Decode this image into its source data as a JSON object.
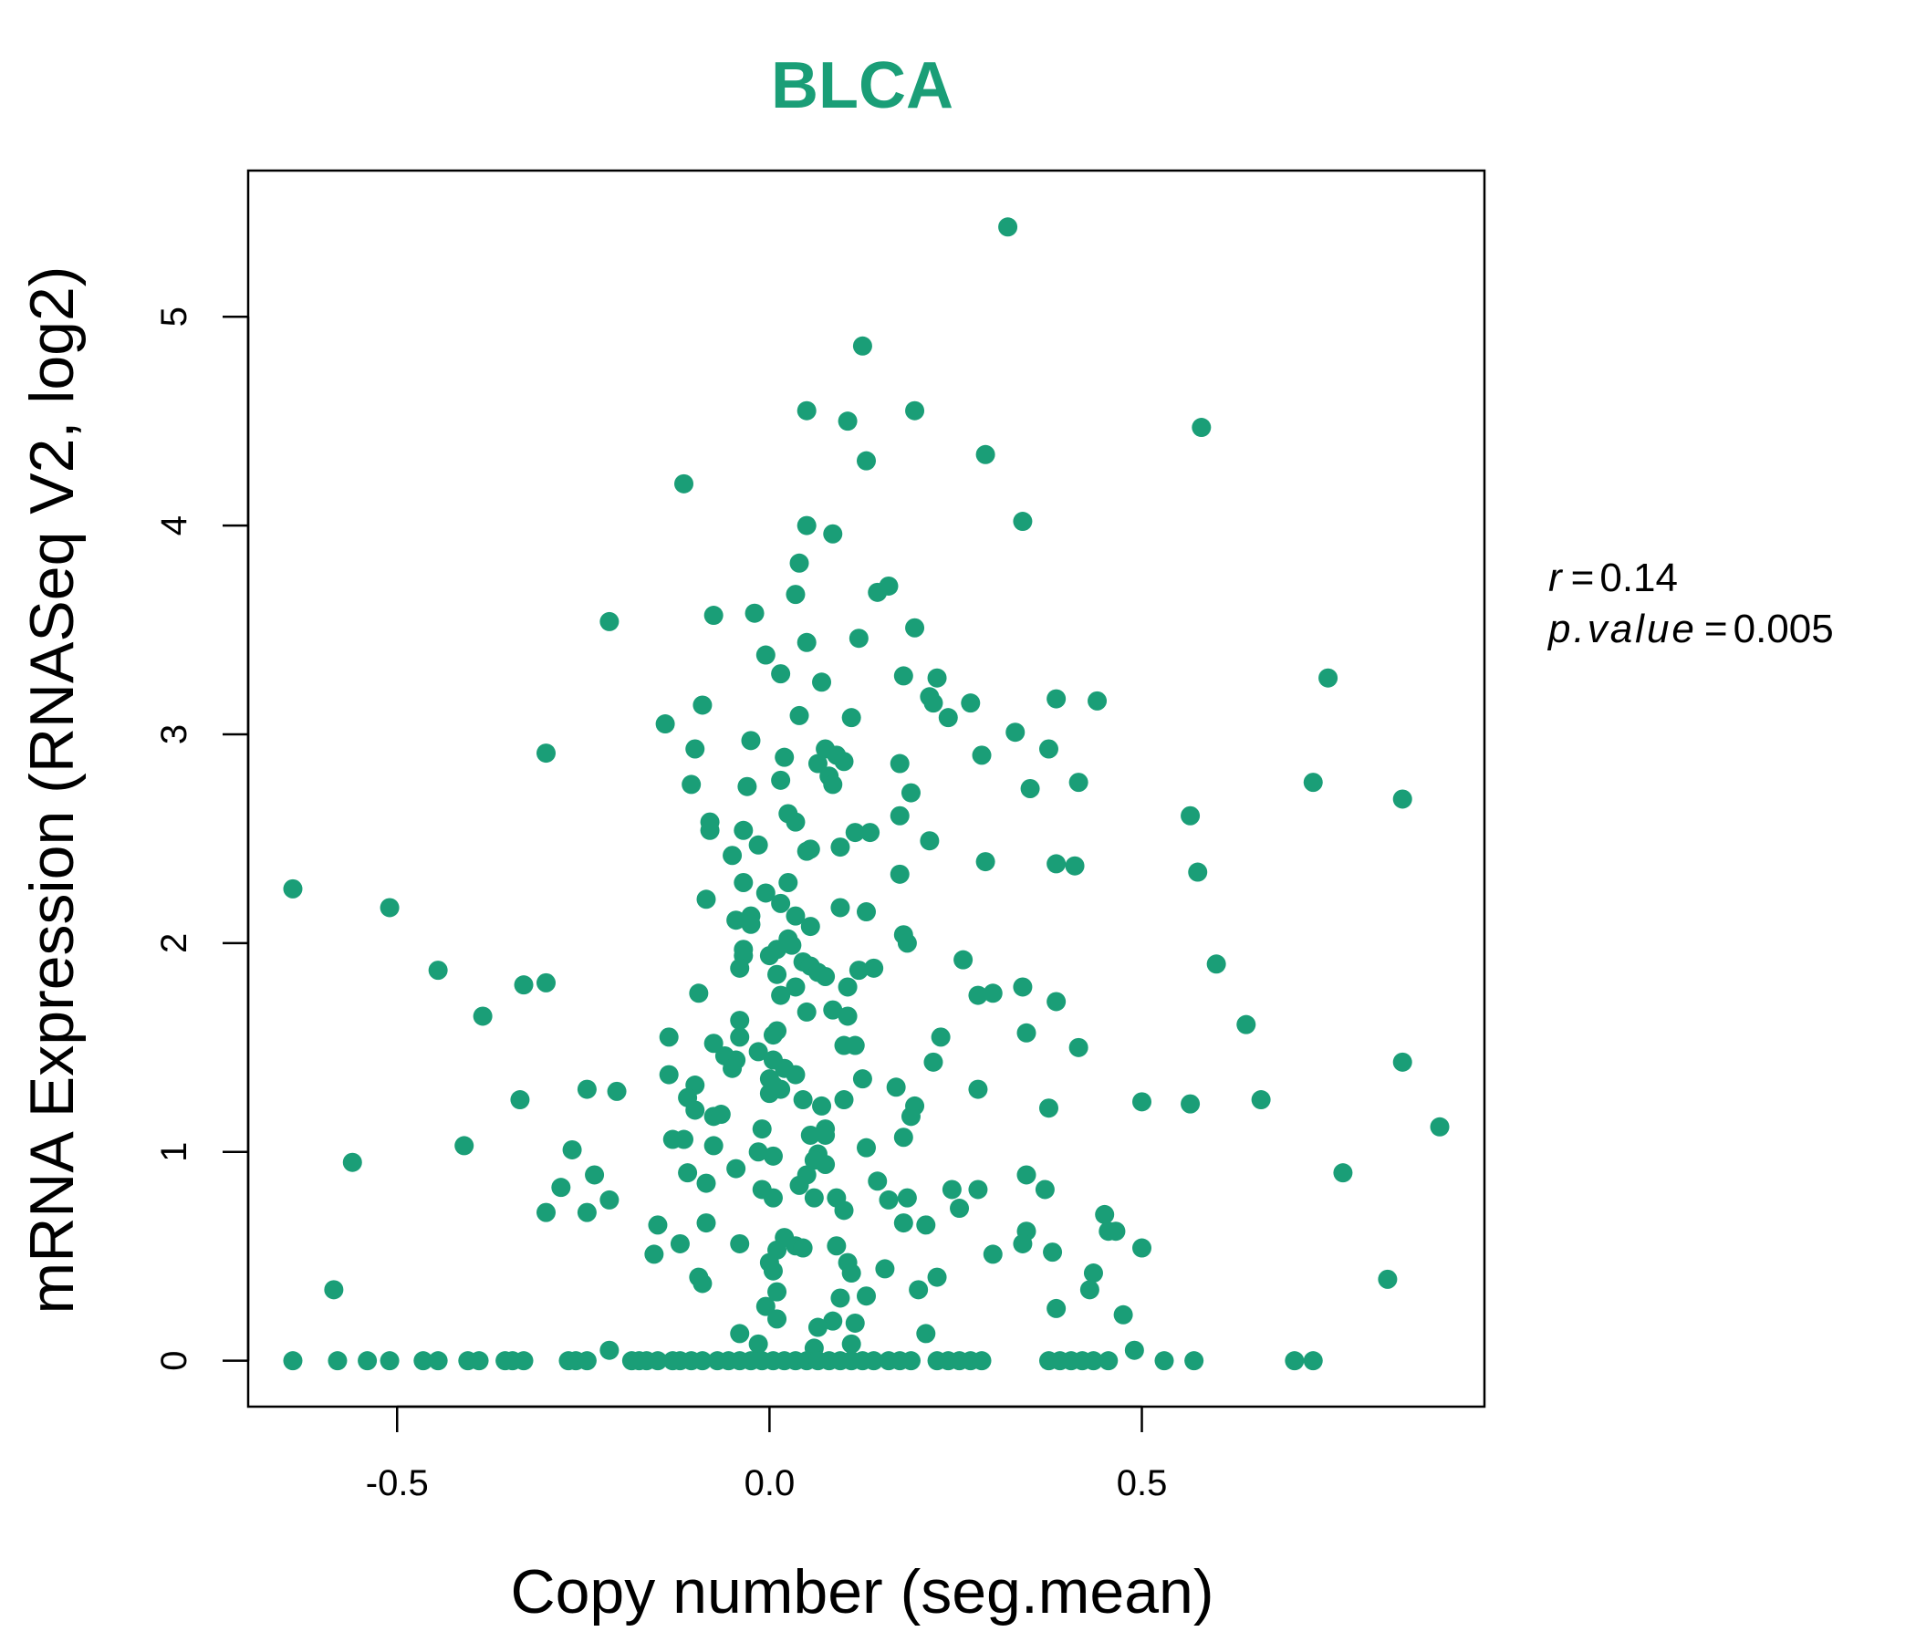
{
  "chart_data": {
    "type": "scatter",
    "title": "BLCA",
    "xlabel": "Copy number (seg.mean)",
    "ylabel": "mRNA Expression (RNASeq V2, log2)",
    "xlim": [
      -0.7,
      0.96
    ],
    "ylim": [
      -0.22,
      5.7
    ],
    "xticks": [
      -0.5,
      0.0,
      0.5
    ],
    "xtick_labels": [
      "-0.5",
      "0.0",
      "0.5"
    ],
    "yticks": [
      0,
      1,
      2,
      3,
      4,
      5
    ],
    "ytick_labels": [
      "0",
      "1",
      "2",
      "3",
      "4",
      "5"
    ],
    "grid": false,
    "legend": "none",
    "point_color": "#1a9e77",
    "title_color": "#1a9e77",
    "stats": {
      "r_label": "r",
      "r_value": "0.14",
      "p_label": "p.value",
      "p_value": "0.005"
    },
    "points": [
      [
        0.32,
        5.43
      ],
      [
        0.125,
        4.86
      ],
      [
        0.195,
        4.55
      ],
      [
        0.05,
        4.55
      ],
      [
        0.105,
        4.5
      ],
      [
        0.58,
        4.47
      ],
      [
        0.29,
        4.34
      ],
      [
        0.13,
        4.31
      ],
      [
        -0.115,
        4.2
      ],
      [
        0.34,
        4.02
      ],
      [
        0.05,
        4.0
      ],
      [
        0.085,
        3.96
      ],
      [
        0.04,
        3.82
      ],
      [
        0.16,
        3.71
      ],
      [
        0.145,
        3.68
      ],
      [
        0.035,
        3.67
      ],
      [
        -0.075,
        3.57
      ],
      [
        -0.02,
        3.58
      ],
      [
        -0.215,
        3.54
      ],
      [
        0.195,
        3.51
      ],
      [
        0.12,
        3.46
      ],
      [
        0.05,
        3.44
      ],
      [
        -0.005,
        3.38
      ],
      [
        0.015,
        3.29
      ],
      [
        0.18,
        3.28
      ],
      [
        0.225,
        3.27
      ],
      [
        0.07,
        3.25
      ],
      [
        0.75,
        3.27
      ],
      [
        0.215,
        3.18
      ],
      [
        0.22,
        3.15
      ],
      [
        0.27,
        3.15
      ],
      [
        0.385,
        3.17
      ],
      [
        0.44,
        3.16
      ],
      [
        -0.09,
        3.14
      ],
      [
        0.04,
        3.09
      ],
      [
        0.11,
        3.08
      ],
      [
        0.24,
        3.08
      ],
      [
        -0.14,
        3.05
      ],
      [
        0.33,
        3.01
      ],
      [
        -0.025,
        2.97
      ],
      [
        0.075,
        2.93
      ],
      [
        0.09,
        2.9
      ],
      [
        0.375,
        2.93
      ],
      [
        -0.3,
        2.91
      ],
      [
        -0.1,
        2.93
      ],
      [
        0.02,
        2.89
      ],
      [
        0.285,
        2.9
      ],
      [
        0.065,
        2.86
      ],
      [
        0.1,
        2.87
      ],
      [
        0.175,
        2.86
      ],
      [
        0.08,
        2.8
      ],
      [
        0.085,
        2.76
      ],
      [
        -0.105,
        2.76
      ],
      [
        0.415,
        2.77
      ],
      [
        0.73,
        2.77
      ],
      [
        0.015,
        2.78
      ],
      [
        0.35,
        2.74
      ],
      [
        -0.03,
        2.75
      ],
      [
        0.19,
        2.72
      ],
      [
        0.85,
        2.69
      ],
      [
        0.025,
        2.62
      ],
      [
        -0.08,
        2.58
      ],
      [
        0.175,
        2.61
      ],
      [
        0.565,
        2.61
      ],
      [
        0.035,
        2.58
      ],
      [
        -0.08,
        2.54
      ],
      [
        -0.035,
        2.54
      ],
      [
        0.115,
        2.53
      ],
      [
        0.135,
        2.53
      ],
      [
        0.215,
        2.49
      ],
      [
        -0.015,
        2.47
      ],
      [
        0.055,
        2.45
      ],
      [
        0.05,
        2.44
      ],
      [
        0.095,
        2.46
      ],
      [
        -0.05,
        2.42
      ],
      [
        0.29,
        2.39
      ],
      [
        0.385,
        2.38
      ],
      [
        0.41,
        2.37
      ],
      [
        0.575,
        2.34
      ],
      [
        0.175,
        2.33
      ],
      [
        -0.035,
        2.29
      ],
      [
        0.025,
        2.29
      ],
      [
        -0.64,
        2.26
      ],
      [
        -0.005,
        2.24
      ],
      [
        -0.085,
        2.21
      ],
      [
        0.015,
        2.19
      ],
      [
        -0.51,
        2.17
      ],
      [
        0.095,
        2.17
      ],
      [
        0.13,
        2.15
      ],
      [
        -0.045,
        2.11
      ],
      [
        -0.025,
        2.13
      ],
      [
        0.035,
        2.13
      ],
      [
        -0.025,
        2.09
      ],
      [
        0.055,
        2.08
      ],
      [
        0.18,
        2.04
      ],
      [
        0.025,
        2.02
      ],
      [
        0.185,
        2.0
      ],
      [
        0.03,
        1.99
      ],
      [
        -0.035,
        1.97
      ],
      [
        0.01,
        1.97
      ],
      [
        -0.035,
        1.94
      ],
      [
        0.0,
        1.94
      ],
      [
        0.045,
        1.91
      ],
      [
        0.26,
        1.92
      ],
      [
        0.6,
        1.9
      ],
      [
        0.055,
        1.89
      ],
      [
        -0.04,
        1.88
      ],
      [
        0.065,
        1.86
      ],
      [
        0.075,
        1.84
      ],
      [
        0.12,
        1.87
      ],
      [
        0.14,
        1.88
      ],
      [
        0.01,
        1.85
      ],
      [
        -0.445,
        1.87
      ],
      [
        -0.33,
        1.8
      ],
      [
        -0.3,
        1.81
      ],
      [
        0.105,
        1.79
      ],
      [
        0.34,
        1.79
      ],
      [
        0.3,
        1.76
      ],
      [
        0.035,
        1.79
      ],
      [
        0.015,
        1.75
      ],
      [
        -0.095,
        1.76
      ],
      [
        0.28,
        1.75
      ],
      [
        0.385,
        1.72
      ],
      [
        0.05,
        1.67
      ],
      [
        0.085,
        1.68
      ],
      [
        0.105,
        1.65
      ],
      [
        -0.385,
        1.65
      ],
      [
        -0.04,
        1.63
      ],
      [
        0.64,
        1.61
      ],
      [
        0.01,
        1.58
      ],
      [
        0.005,
        1.56
      ],
      [
        0.345,
        1.57
      ],
      [
        -0.135,
        1.55
      ],
      [
        -0.04,
        1.55
      ],
      [
        0.23,
        1.55
      ],
      [
        -0.075,
        1.52
      ],
      [
        0.1,
        1.51
      ],
      [
        0.115,
        1.51
      ],
      [
        0.415,
        1.5
      ],
      [
        -0.015,
        1.48
      ],
      [
        -0.06,
        1.46
      ],
      [
        0.005,
        1.44
      ],
      [
        -0.045,
        1.44
      ],
      [
        -0.05,
        1.4
      ],
      [
        0.02,
        1.4
      ],
      [
        0.22,
        1.43
      ],
      [
        0.85,
        1.43
      ],
      [
        -0.135,
        1.37
      ],
      [
        0.035,
        1.37
      ],
      [
        0.0,
        1.35
      ],
      [
        0.125,
        1.35
      ],
      [
        -0.1,
        1.32
      ],
      [
        -0.245,
        1.3
      ],
      [
        -0.205,
        1.29
      ],
      [
        0.015,
        1.3
      ],
      [
        0.28,
        1.3
      ],
      [
        0.17,
        1.31
      ],
      [
        -0.11,
        1.26
      ],
      [
        -0.335,
        1.25
      ],
      [
        0.045,
        1.25
      ],
      [
        0.1,
        1.25
      ],
      [
        0.66,
        1.25
      ],
      [
        0.5,
        1.24
      ],
      [
        0.565,
        1.23
      ],
      [
        0.0,
        1.28
      ],
      [
        0.005,
        1.32
      ],
      [
        0.07,
        1.22
      ],
      [
        0.195,
        1.22
      ],
      [
        0.375,
        1.21
      ],
      [
        -0.1,
        1.2
      ],
      [
        -0.075,
        1.17
      ],
      [
        -0.065,
        1.18
      ],
      [
        0.19,
        1.17
      ],
      [
        0.9,
        1.12
      ],
      [
        -0.01,
        1.11
      ],
      [
        0.075,
        1.11
      ],
      [
        0.055,
        1.08
      ],
      [
        0.075,
        1.08
      ],
      [
        0.18,
        1.07
      ],
      [
        -0.13,
        1.06
      ],
      [
        -0.115,
        1.06
      ],
      [
        -0.41,
        1.03
      ],
      [
        -0.265,
        1.01
      ],
      [
        -0.075,
        1.03
      ],
      [
        0.13,
        1.02
      ],
      [
        -0.015,
        1.0
      ],
      [
        0.005,
        0.98
      ],
      [
        0.065,
        0.99
      ],
      [
        0.06,
        0.96
      ],
      [
        -0.56,
        0.95
      ],
      [
        -0.045,
        0.92
      ],
      [
        0.075,
        0.94
      ],
      [
        0.345,
        0.89
      ],
      [
        0.77,
        0.9
      ],
      [
        -0.11,
        0.9
      ],
      [
        -0.235,
        0.89
      ],
      [
        0.05,
        0.89
      ],
      [
        0.145,
        0.86
      ],
      [
        -0.085,
        0.85
      ],
      [
        -0.28,
        0.83
      ],
      [
        0.04,
        0.84
      ],
      [
        0.245,
        0.82
      ],
      [
        0.28,
        0.82
      ],
      [
        0.37,
        0.82
      ],
      [
        -0.01,
        0.82
      ],
      [
        0.005,
        0.78
      ],
      [
        0.06,
        0.78
      ],
      [
        0.09,
        0.78
      ],
      [
        0.16,
        0.77
      ],
      [
        0.185,
        0.78
      ],
      [
        -0.215,
        0.77
      ],
      [
        -0.245,
        0.71
      ],
      [
        -0.3,
        0.71
      ],
      [
        0.1,
        0.72
      ],
      [
        0.255,
        0.73
      ],
      [
        0.45,
        0.7
      ],
      [
        -0.085,
        0.66
      ],
      [
        0.18,
        0.66
      ],
      [
        0.21,
        0.65
      ],
      [
        -0.15,
        0.65
      ],
      [
        0.455,
        0.62
      ],
      [
        0.465,
        0.62
      ],
      [
        0.345,
        0.62
      ],
      [
        0.02,
        0.59
      ],
      [
        0.035,
        0.55
      ],
      [
        0.045,
        0.54
      ],
      [
        0.01,
        0.53
      ],
      [
        0.09,
        0.55
      ],
      [
        0.34,
        0.56
      ],
      [
        -0.04,
        0.56
      ],
      [
        -0.12,
        0.56
      ],
      [
        0.5,
        0.54
      ],
      [
        0.38,
        0.52
      ],
      [
        0.3,
        0.51
      ],
      [
        -0.155,
        0.51
      ],
      [
        0.0,
        0.47
      ],
      [
        0.105,
        0.47
      ],
      [
        0.11,
        0.42
      ],
      [
        0.155,
        0.44
      ],
      [
        0.435,
        0.42
      ],
      [
        0.005,
        0.43
      ],
      [
        -0.095,
        0.4
      ],
      [
        -0.09,
        0.37
      ],
      [
        0.225,
        0.4
      ],
      [
        0.83,
        0.39
      ],
      [
        -0.585,
        0.34
      ],
      [
        0.2,
        0.34
      ],
      [
        0.43,
        0.34
      ],
      [
        0.01,
        0.33
      ],
      [
        0.13,
        0.31
      ],
      [
        0.095,
        0.3
      ],
      [
        -0.005,
        0.26
      ],
      [
        0.385,
        0.25
      ],
      [
        0.475,
        0.22
      ],
      [
        0.01,
        0.2
      ],
      [
        0.085,
        0.19
      ],
      [
        0.115,
        0.18
      ],
      [
        0.065,
        0.16
      ],
      [
        -0.04,
        0.13
      ],
      [
        0.21,
        0.13
      ],
      [
        -0.015,
        0.08
      ],
      [
        0.11,
        0.08
      ],
      [
        0.49,
        0.05
      ],
      [
        -0.215,
        0.05
      ],
      [
        0.06,
        0.06
      ],
      [
        -0.64,
        0.0
      ],
      [
        -0.58,
        0.0
      ],
      [
        -0.54,
        0.0
      ],
      [
        -0.51,
        0.0
      ],
      [
        -0.465,
        0.0
      ],
      [
        -0.445,
        0.0
      ],
      [
        -0.405,
        0.0
      ],
      [
        -0.39,
        0.0
      ],
      [
        -0.355,
        0.0
      ],
      [
        -0.345,
        0.0
      ],
      [
        -0.33,
        0.0
      ],
      [
        -0.27,
        0.0
      ],
      [
        -0.26,
        0.0
      ],
      [
        -0.245,
        0.0
      ],
      [
        -0.185,
        0.0
      ],
      [
        -0.175,
        0.0
      ],
      [
        -0.165,
        0.0
      ],
      [
        -0.15,
        0.0
      ],
      [
        -0.13,
        0.0
      ],
      [
        -0.12,
        0.0
      ],
      [
        -0.105,
        0.0
      ],
      [
        -0.09,
        0.0
      ],
      [
        -0.07,
        0.0
      ],
      [
        -0.055,
        0.0
      ],
      [
        -0.04,
        0.0
      ],
      [
        -0.025,
        0.0
      ],
      [
        -0.01,
        0.0
      ],
      [
        0.005,
        0.0
      ],
      [
        0.02,
        0.0
      ],
      [
        0.035,
        0.0
      ],
      [
        0.05,
        0.0
      ],
      [
        0.065,
        0.0
      ],
      [
        0.08,
        0.0
      ],
      [
        0.095,
        0.0
      ],
      [
        0.11,
        0.0
      ],
      [
        0.125,
        0.0
      ],
      [
        0.14,
        0.0
      ],
      [
        0.16,
        0.0
      ],
      [
        0.175,
        0.0
      ],
      [
        0.19,
        0.0
      ],
      [
        0.225,
        0.0
      ],
      [
        0.24,
        0.0
      ],
      [
        0.255,
        0.0
      ],
      [
        0.27,
        0.0
      ],
      [
        0.285,
        0.0
      ],
      [
        0.375,
        0.0
      ],
      [
        0.39,
        0.0
      ],
      [
        0.405,
        0.0
      ],
      [
        0.42,
        0.0
      ],
      [
        0.435,
        0.0
      ],
      [
        0.455,
        0.0
      ],
      [
        0.53,
        0.0
      ],
      [
        0.57,
        0.0
      ],
      [
        0.705,
        0.0
      ],
      [
        0.73,
        0.0
      ]
    ]
  }
}
